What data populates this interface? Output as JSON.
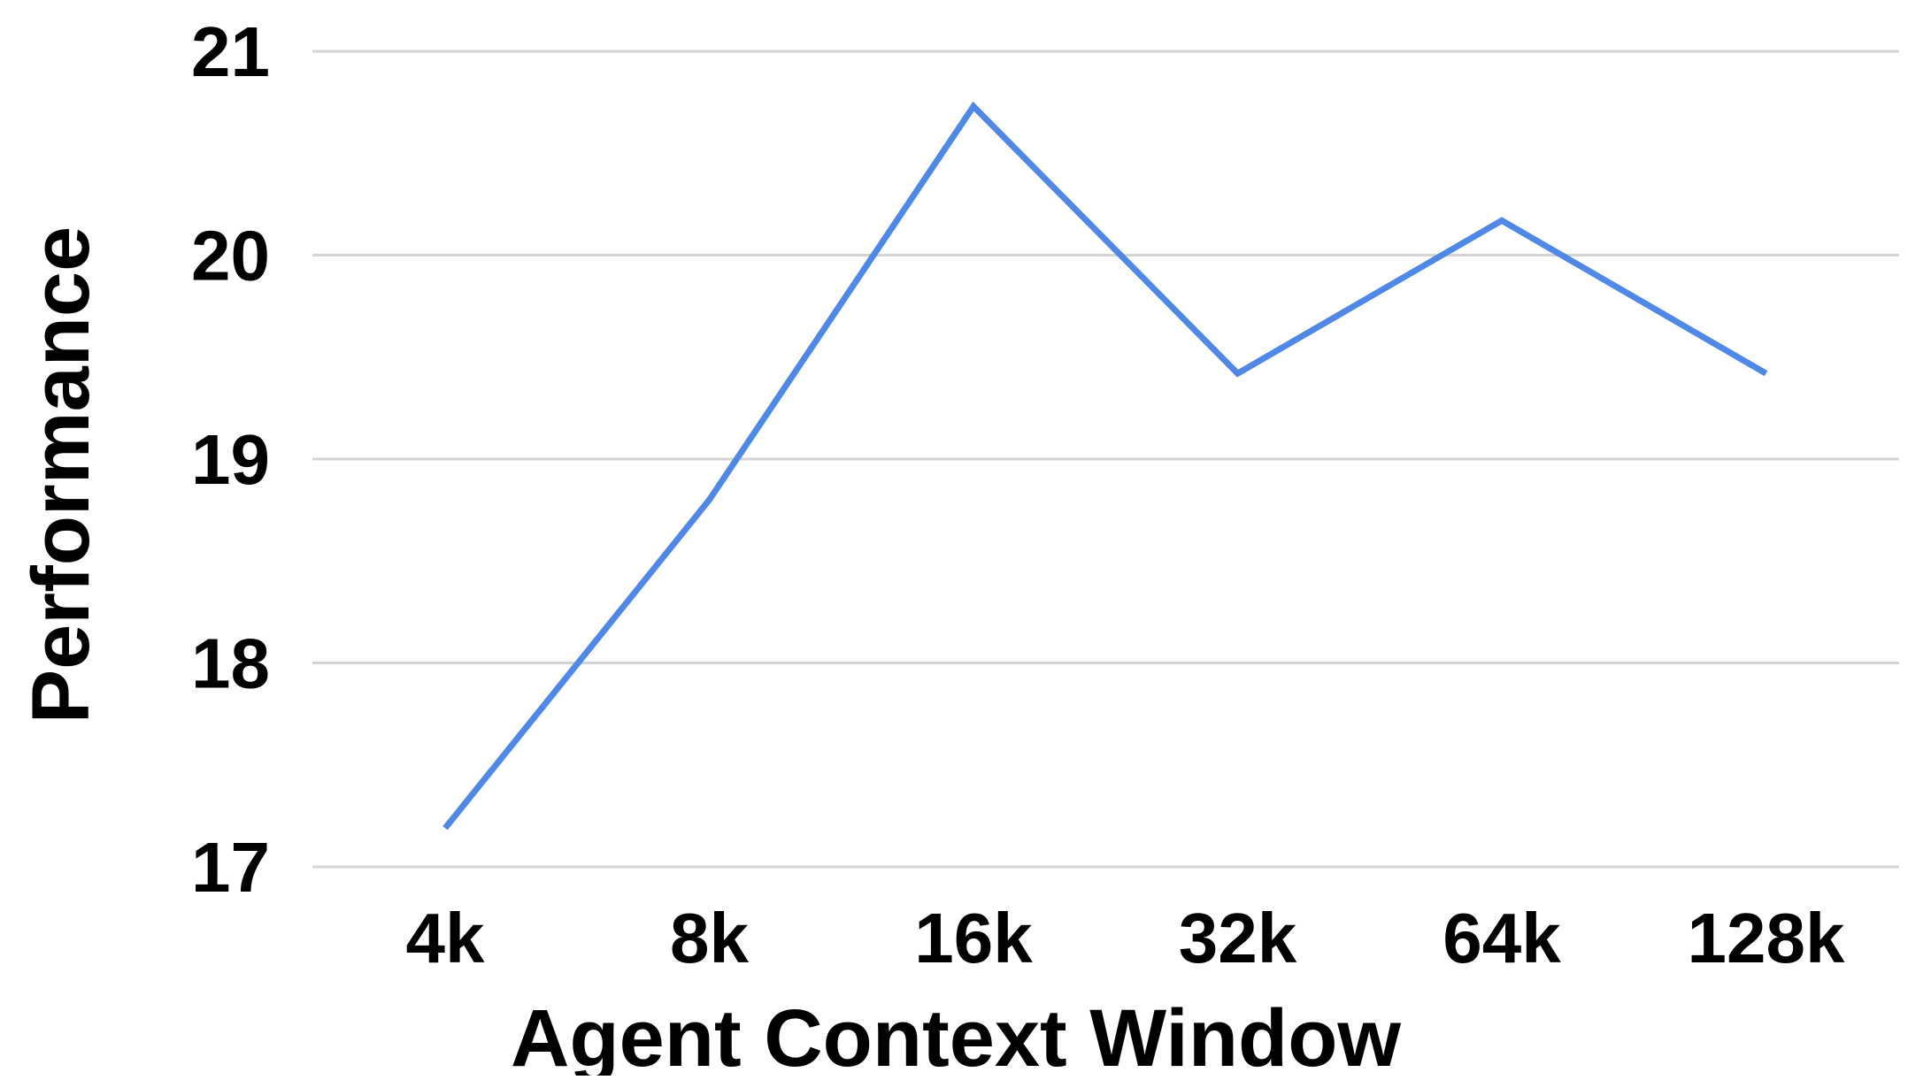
{
  "chart_data": {
    "type": "line",
    "title": "",
    "xlabel": "Agent Context Window",
    "ylabel": "Performance",
    "categories": [
      "4k",
      "8k",
      "16k",
      "32k",
      "64k",
      "128k"
    ],
    "series": [
      {
        "values": [
          17.19,
          18.8,
          20.73,
          19.42,
          20.17,
          19.42
        ],
        "color": "#4f88e6"
      }
    ],
    "ylim": [
      17,
      21
    ],
    "yticks": [
      "17",
      "18",
      "19",
      "20",
      "21"
    ],
    "grid": true,
    "legend": "none"
  }
}
